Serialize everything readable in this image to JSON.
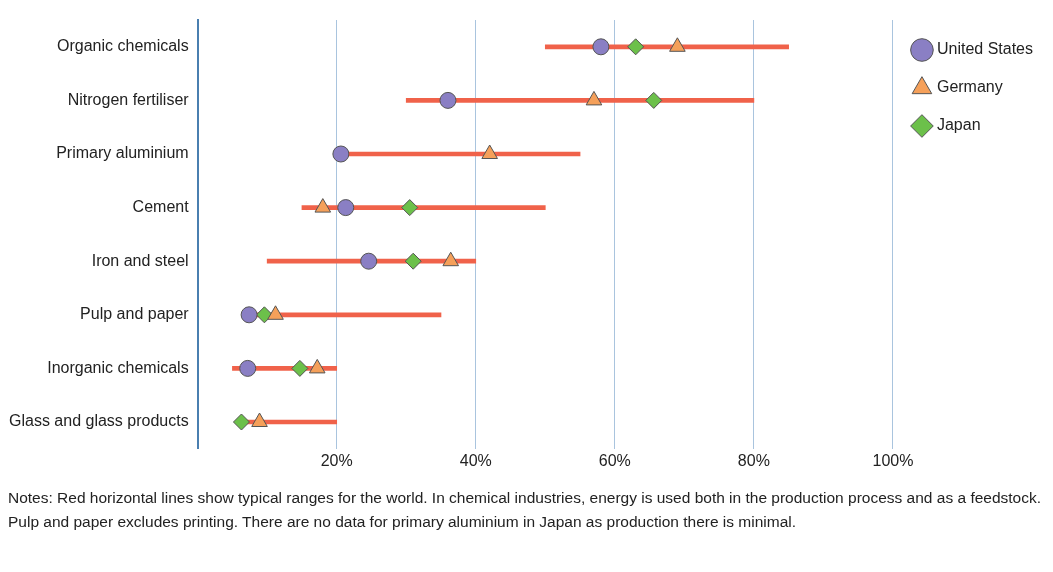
{
  "chart_data": {
    "type": "scatter",
    "orientation": "horizontal",
    "categories": [
      "Organic chemicals",
      "Nitrogen fertiliser",
      "Primary aluminium",
      "Cement",
      "Iron and steel",
      "Pulp and paper",
      "Inorganic chemicals",
      "Glass and glass products"
    ],
    "series": [
      {
        "type": "bar",
        "color": "#f0624a",
        "base": [
          50,
          30,
          20,
          15,
          10,
          7,
          5,
          6
        ],
        "values": [
          35,
          50,
          35,
          35,
          30,
          28,
          15,
          14
        ]
      },
      {
        "name": "United States",
        "marker": "circle",
        "color": "#8a7fc4",
        "values": [
          58,
          36,
          20.6,
          21.3,
          24.6,
          7.4,
          7.2,
          null
        ]
      },
      {
        "name": "Germany",
        "marker": "triangle",
        "color": "#f5a05a",
        "values": [
          69,
          57,
          42,
          18,
          36.4,
          11.2,
          17.2,
          8.9
        ]
      },
      {
        "name": "Japan",
        "marker": "diamond",
        "color": "#6cc04a",
        "values": [
          63,
          65.6,
          null,
          30.5,
          31,
          9.6,
          14.7,
          6.3
        ]
      }
    ],
    "xlim": [
      0,
      100
    ],
    "xticks": [
      {
        "value": 20,
        "label": "20%"
      },
      {
        "value": 40,
        "label": "40%"
      },
      {
        "value": 60,
        "label": "60%"
      },
      {
        "value": 80,
        "label": "80%"
      },
      {
        "value": 100,
        "label": "100%"
      }
    ],
    "grid": "x",
    "legend": "right",
    "annotations": [
      "Notes: Red horizontal lines show typical ranges for the world. In chemical industries, energy is used both in the production process and as a feedstock. Pulp and paper excludes printing. There are no data for primary aluminium in Japan as production there is minimal."
    ]
  }
}
